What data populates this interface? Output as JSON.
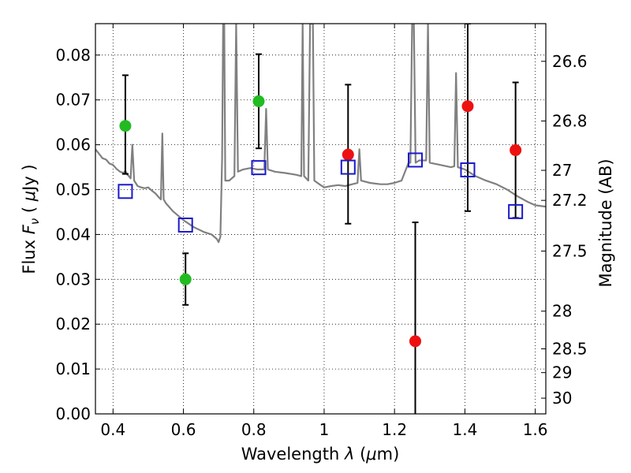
{
  "chart_data": {
    "type": "scatter",
    "xlabel_text": "Wavelength",
    "xlabel_symbol": "λ",
    "xlabel_unit_open": "(",
    "xlabel_unit_mu": "μ",
    "xlabel_unit_rest": "m)",
    "ylabel_text": "Flux",
    "ylabel_symbol_F": "F",
    "ylabel_symbol_nu": "ν",
    "ylabel_unit_open": "(",
    "ylabel_unit_mu": "μ",
    "ylabel_unit_rest": "Jy )",
    "y2label": "Magnitude (AB)",
    "xlim": [
      0.35,
      1.63
    ],
    "ylim": [
      0.0,
      0.087
    ],
    "x_ticks": [
      0.4,
      0.6,
      0.8,
      1.0,
      1.2,
      1.4,
      1.6
    ],
    "x_tick_labels": [
      "0.4",
      "0.6",
      "0.8",
      "1",
      "1.2",
      "1.4",
      "1.6"
    ],
    "y_ticks": [
      0.0,
      0.01,
      0.02,
      0.03,
      0.04,
      0.05,
      0.06,
      0.07,
      0.08
    ],
    "y_tick_labels": [
      "0.00",
      "0.01",
      "0.02",
      "0.03",
      "0.04",
      "0.05",
      "0.06",
      "0.07",
      "0.08"
    ],
    "y2_ticks": [
      {
        "flux": 0.0786,
        "label": "26.6"
      },
      {
        "flux": 0.0653,
        "label": "26.8"
      },
      {
        "flux": 0.0543,
        "label": "27"
      },
      {
        "flux": 0.0476,
        "label": "27.2"
      },
      {
        "flux": 0.0363,
        "label": "27.5"
      },
      {
        "flux": 0.0229,
        "label": "28"
      },
      {
        "flux": 0.0145,
        "label": "28.5"
      },
      {
        "flux": 0.0092,
        "label": "29"
      },
      {
        "flux": 0.0035,
        "label": "30"
      }
    ],
    "grid": true,
    "series": [
      {
        "name": "observed-green",
        "color": "#22bb22",
        "points": [
          {
            "x": 0.435,
            "y": 0.0642,
            "ylo": 0.0535,
            "yhi": 0.0755
          },
          {
            "x": 0.606,
            "y": 0.03,
            "ylo": 0.0243,
            "yhi": 0.0358
          },
          {
            "x": 0.814,
            "y": 0.0697,
            "ylo": 0.0592,
            "yhi": 0.0802
          }
        ]
      },
      {
        "name": "observed-red",
        "color": "#ee1111",
        "points": [
          {
            "x": 1.068,
            "y": 0.0578,
            "ylo": 0.0424,
            "yhi": 0.0734
          },
          {
            "x": 1.259,
            "y": 0.0162,
            "ylo": 0.0,
            "yhi": 0.0427
          },
          {
            "x": 1.408,
            "y": 0.0686,
            "ylo": 0.0452,
            "yhi": 0.087
          },
          {
            "x": 1.544,
            "y": 0.0588,
            "ylo": 0.0437,
            "yhi": 0.0739
          }
        ]
      },
      {
        "name": "model",
        "color": "#1a1acc",
        "points": [
          {
            "x": 0.435,
            "y": 0.0496
          },
          {
            "x": 0.606,
            "y": 0.0421
          },
          {
            "x": 0.814,
            "y": 0.0549
          },
          {
            "x": 1.068,
            "y": 0.055
          },
          {
            "x": 1.259,
            "y": 0.0566
          },
          {
            "x": 1.408,
            "y": 0.0544
          },
          {
            "x": 1.544,
            "y": 0.0451
          }
        ]
      }
    ],
    "spectrum": {
      "name": "template-spectrum",
      "color": "#808080",
      "points": [
        [
          0.35,
          0.059
        ],
        [
          0.36,
          0.058
        ],
        [
          0.37,
          0.057
        ],
        [
          0.38,
          0.0567
        ],
        [
          0.39,
          0.0558
        ],
        [
          0.4,
          0.0555
        ],
        [
          0.41,
          0.0546
        ],
        [
          0.42,
          0.054
        ],
        [
          0.43,
          0.0537
        ],
        [
          0.435,
          0.0542
        ],
        [
          0.44,
          0.0534
        ],
        [
          0.445,
          0.053
        ],
        [
          0.45,
          0.0525
        ],
        [
          0.455,
          0.06
        ],
        [
          0.46,
          0.052
        ],
        [
          0.47,
          0.0508
        ],
        [
          0.48,
          0.0505
        ],
        [
          0.49,
          0.0503
        ],
        [
          0.5,
          0.0505
        ],
        [
          0.51,
          0.0498
        ],
        [
          0.52,
          0.0492
        ],
        [
          0.53,
          0.0483
        ],
        [
          0.536,
          0.0478
        ],
        [
          0.54,
          0.0625
        ],
        [
          0.544,
          0.0478
        ],
        [
          0.55,
          0.047
        ],
        [
          0.57,
          0.0452
        ],
        [
          0.6,
          0.0432
        ],
        [
          0.63,
          0.0416
        ],
        [
          0.66,
          0.0405
        ],
        [
          0.68,
          0.04
        ],
        [
          0.695,
          0.039
        ],
        [
          0.7,
          0.0383
        ],
        [
          0.705,
          0.0395
        ],
        [
          0.71,
          0.057
        ],
        [
          0.713,
          0.087
        ],
        [
          0.716,
          0.087
        ],
        [
          0.719,
          0.052
        ],
        [
          0.73,
          0.052
        ],
        [
          0.745,
          0.053
        ],
        [
          0.75,
          0.087
        ],
        [
          0.755,
          0.054
        ],
        [
          0.77,
          0.0545
        ],
        [
          0.79,
          0.0548
        ],
        [
          0.81,
          0.0545
        ],
        [
          0.83,
          0.0545
        ],
        [
          0.835,
          0.068
        ],
        [
          0.84,
          0.0545
        ],
        [
          0.86,
          0.054
        ],
        [
          0.89,
          0.0537
        ],
        [
          0.92,
          0.0533
        ],
        [
          0.935,
          0.053
        ],
        [
          0.939,
          0.087
        ],
        [
          0.943,
          0.053
        ],
        [
          0.955,
          0.052
        ],
        [
          0.96,
          0.087
        ],
        [
          0.964,
          0.087
        ],
        [
          0.968,
          0.087
        ],
        [
          0.972,
          0.052
        ],
        [
          0.99,
          0.051
        ],
        [
          1.0,
          0.0505
        ],
        [
          1.02,
          0.0508
        ],
        [
          1.04,
          0.051
        ],
        [
          1.06,
          0.0508
        ],
        [
          1.08,
          0.0512
        ],
        [
          1.095,
          0.0515
        ],
        [
          1.1,
          0.059
        ],
        [
          1.105,
          0.052
        ],
        [
          1.13,
          0.0515
        ],
        [
          1.16,
          0.0512
        ],
        [
          1.18,
          0.0512
        ],
        [
          1.2,
          0.0515
        ],
        [
          1.22,
          0.052
        ],
        [
          1.24,
          0.056
        ],
        [
          1.245,
          0.056
        ],
        [
          1.25,
          0.087
        ],
        [
          1.255,
          0.087
        ],
        [
          1.26,
          0.056
        ],
        [
          1.27,
          0.0565
        ],
        [
          1.29,
          0.0565
        ],
        [
          1.295,
          0.087
        ],
        [
          1.3,
          0.056
        ],
        [
          1.33,
          0.0555
        ],
        [
          1.36,
          0.055
        ],
        [
          1.37,
          0.0552
        ],
        [
          1.375,
          0.076
        ],
        [
          1.38,
          0.055
        ],
        [
          1.4,
          0.0545
        ],
        [
          1.43,
          0.053
        ],
        [
          1.46,
          0.052
        ],
        [
          1.49,
          0.0512
        ],
        [
          1.52,
          0.05
        ],
        [
          1.55,
          0.0485
        ],
        [
          1.58,
          0.0472
        ],
        [
          1.6,
          0.0465
        ],
        [
          1.63,
          0.0462
        ]
      ]
    }
  }
}
